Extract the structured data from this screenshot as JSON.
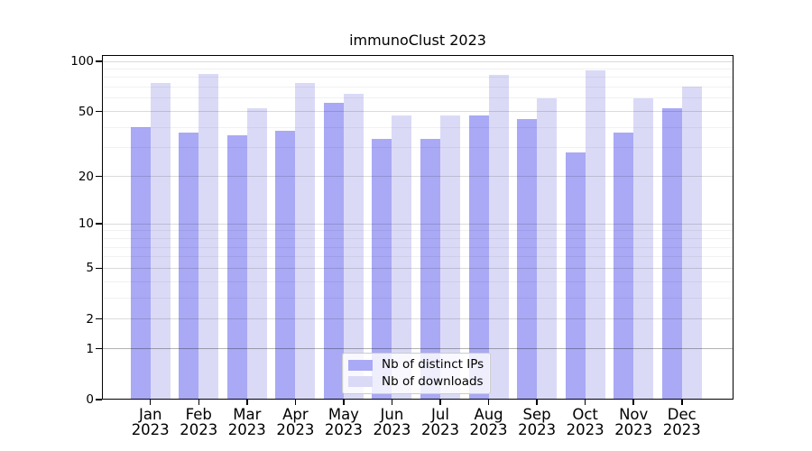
{
  "figure": {
    "background": "#ffffff"
  },
  "chart_data": {
    "type": "bar",
    "title": "immunoClust 2023",
    "categories": [
      "Jan 2023",
      "Feb 2023",
      "Mar 2023",
      "Apr 2023",
      "May 2023",
      "Jun 2023",
      "Jul 2023",
      "Aug 2023",
      "Sep 2023",
      "Oct 2023",
      "Nov 2023",
      "Dec 2023"
    ],
    "series": [
      {
        "name": "Nb of distinct IPs",
        "color": "#a9a9f5",
        "values": [
          40,
          37,
          36,
          38,
          56,
          34,
          34,
          47,
          45,
          28,
          37,
          52
        ]
      },
      {
        "name": "Nb of downloads",
        "color": "#dadaf7",
        "values": [
          74,
          84,
          52,
          74,
          64,
          47,
          47,
          83,
          60,
          88,
          60,
          71
        ]
      }
    ],
    "xlabel": "",
    "ylabel": "",
    "yscale": "log1p",
    "ylim": [
      0,
      100
    ],
    "yticks": [
      0,
      1,
      2,
      5,
      10,
      20,
      50,
      100
    ],
    "yticks_minor": [
      3,
      4,
      6,
      7,
      8,
      9,
      30,
      40,
      60,
      70,
      80,
      90
    ],
    "grid": "horizontal",
    "legend": {
      "position": "lower center"
    }
  },
  "colors": {
    "grid_major": "rgba(0,0,0,0.14)",
    "grid_minor": "rgba(0,0,0,0.055)",
    "grid_baseline": "rgba(0,0,0,0.30)",
    "spine": "#000000"
  }
}
